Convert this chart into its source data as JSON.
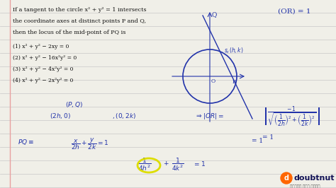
{
  "bg_color": "#f0efe8",
  "line_color": "#c8c8c8",
  "text_color": "#2233aa",
  "dark_text": "#111111",
  "figsize": [
    4.74,
    2.66
  ],
  "dpi": 100,
  "title_lines": [
    "If a tangent to the circle x² + y² = 1 intersects",
    "the coordinate axes at distinct points P and Q,",
    "then the locus of the mid-point of PQ is"
  ],
  "options": [
    "(1) x² + y² − 2xy = 0",
    "(2) x² + y² − 16x²y² = 0",
    "(3) x² + y² − 4x²y² = 0",
    "(4) x² + y² − 2x²y² = 0"
  ],
  "or_label": "(OR) = 1",
  "logo_text": "doubtnut",
  "bottom_text": "पढ़ना हुआ आसान"
}
